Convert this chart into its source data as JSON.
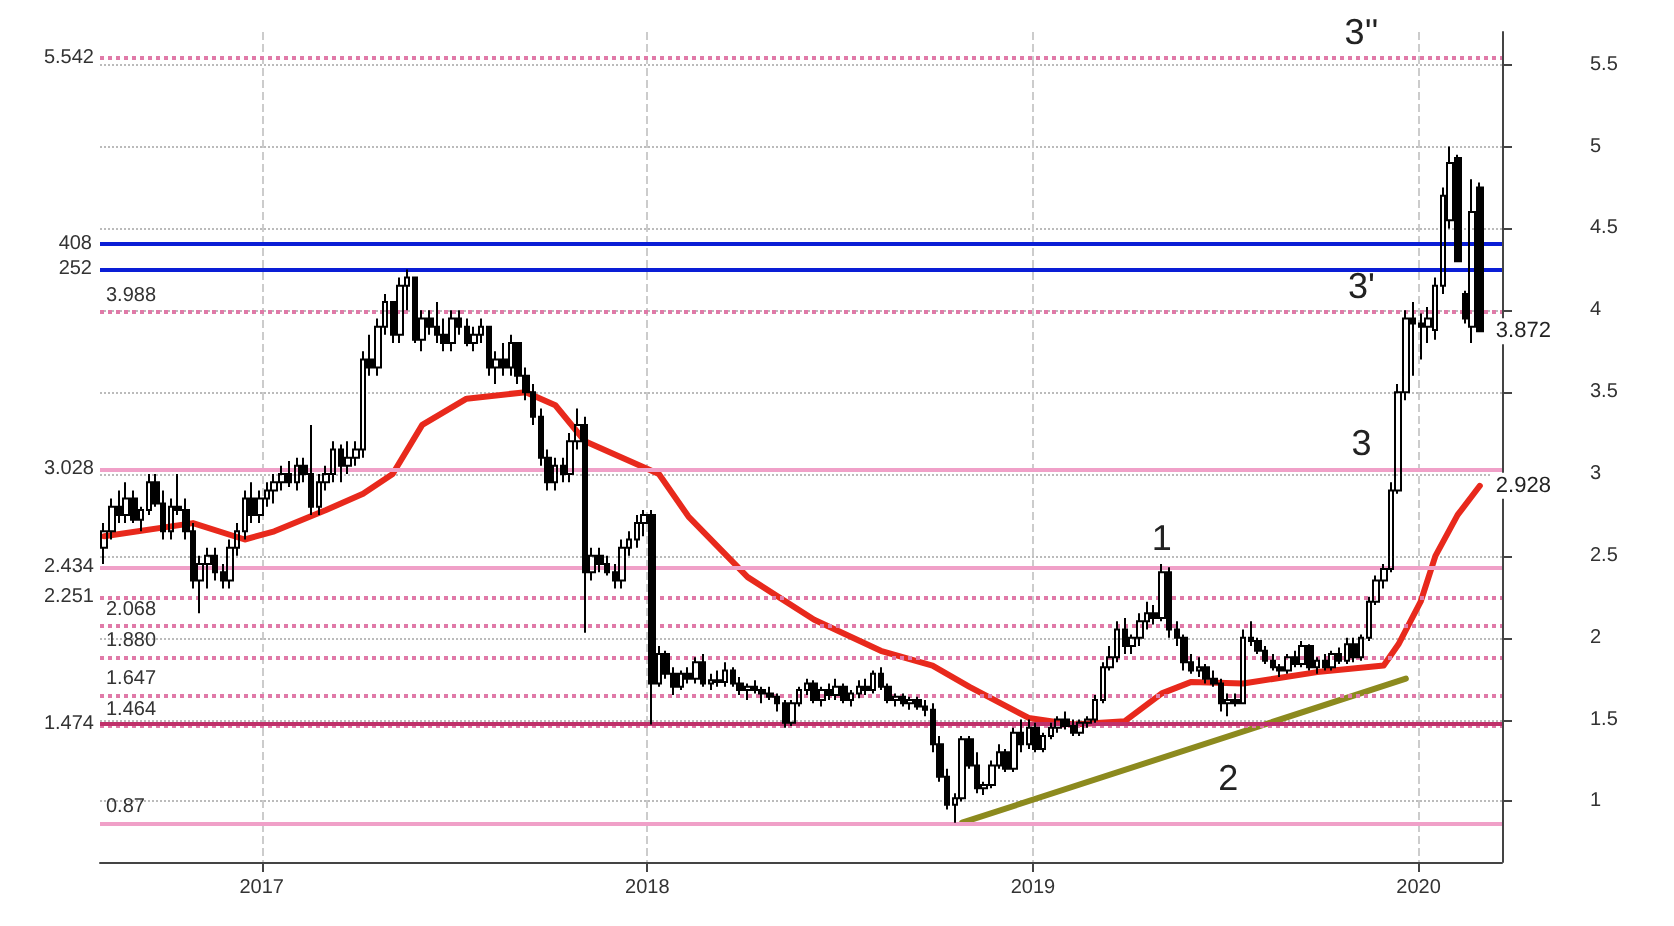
{
  "chart_data": {
    "type": "candlestick",
    "x": [
      "2016-08-05",
      "2016-08-12",
      "2016-08-19",
      "2016-08-26",
      "2016-09-02",
      "2016-09-09",
      "2016-09-16",
      "2016-09-23",
      "2016-09-30",
      "2016-10-07",
      "2016-10-14",
      "2016-10-21",
      "2016-10-28",
      "2016-11-04",
      "2016-11-11",
      "2016-11-18",
      "2016-11-25",
      "2016-12-02",
      "2016-12-09",
      "2016-12-16",
      "2016-12-23",
      "2016-12-30",
      "2017-01-06",
      "2017-01-13",
      "2017-01-20",
      "2017-01-27",
      "2017-02-03",
      "2017-02-10",
      "2017-02-17",
      "2017-02-24",
      "2017-03-03",
      "2017-03-10",
      "2017-03-17",
      "2017-03-24",
      "2017-03-31",
      "2017-04-07",
      "2017-04-14",
      "2017-04-21",
      "2017-04-28",
      "2017-05-05",
      "2017-05-12",
      "2017-05-19",
      "2017-05-26",
      "2017-06-02",
      "2017-06-09",
      "2017-06-16",
      "2017-06-23",
      "2017-06-30",
      "2017-07-07",
      "2017-07-14",
      "2017-07-21",
      "2017-07-28",
      "2017-08-04",
      "2017-08-11",
      "2017-08-18",
      "2017-08-25",
      "2017-09-01",
      "2017-09-08",
      "2017-09-15",
      "2017-09-22",
      "2017-09-29",
      "2017-10-06",
      "2017-10-13",
      "2017-10-20",
      "2017-10-27",
      "2017-11-03",
      "2017-11-10",
      "2017-11-17",
      "2017-11-24",
      "2017-12-01",
      "2017-12-08",
      "2017-12-15",
      "2017-12-22",
      "2017-12-29",
      "2018-01-05",
      "2018-01-12",
      "2018-01-19",
      "2018-01-26",
      "2018-02-02",
      "2018-02-09",
      "2018-02-16",
      "2018-02-23",
      "2018-03-02",
      "2018-03-09",
      "2018-03-16",
      "2018-03-23",
      "2018-03-30",
      "2018-04-06",
      "2018-04-13",
      "2018-04-20",
      "2018-04-27",
      "2018-05-04",
      "2018-05-11",
      "2018-05-18",
      "2018-05-25",
      "2018-06-01",
      "2018-06-08",
      "2018-06-15",
      "2018-06-22",
      "2018-06-29",
      "2018-07-06",
      "2018-07-13",
      "2018-07-20",
      "2018-07-27",
      "2018-08-03",
      "2018-08-10",
      "2018-08-17",
      "2018-08-24",
      "2018-08-31",
      "2018-09-07",
      "2018-09-14",
      "2018-09-21",
      "2018-09-28",
      "2018-10-05",
      "2018-10-12",
      "2018-10-19",
      "2018-10-26",
      "2018-11-02",
      "2018-11-09",
      "2018-11-16",
      "2018-11-23",
      "2018-11-30",
      "2018-12-07",
      "2018-12-14",
      "2018-12-21",
      "2018-12-28",
      "2019-01-04",
      "2019-01-11",
      "2019-01-18",
      "2019-01-25",
      "2019-02-01",
      "2019-02-08",
      "2019-02-15",
      "2019-02-22",
      "2019-03-01",
      "2019-03-08",
      "2019-03-15",
      "2019-03-22",
      "2019-03-29",
      "2019-04-05",
      "2019-04-12",
      "2019-04-19",
      "2019-04-26",
      "2019-05-03",
      "2019-05-10",
      "2019-05-17",
      "2019-05-24",
      "2019-05-31",
      "2019-06-07",
      "2019-06-14",
      "2019-06-21",
      "2019-06-28",
      "2019-07-05",
      "2019-07-12",
      "2019-07-19",
      "2019-07-26",
      "2019-08-02",
      "2019-08-09",
      "2019-08-16",
      "2019-08-23",
      "2019-08-30",
      "2019-09-06",
      "2019-09-13",
      "2019-09-20",
      "2019-09-27",
      "2019-10-04",
      "2019-10-11",
      "2019-10-18",
      "2019-10-25",
      "2019-11-01",
      "2019-11-08",
      "2019-11-15",
      "2019-11-22",
      "2019-11-29",
      "2019-12-06",
      "2019-12-13",
      "2019-12-20",
      "2019-12-27",
      "2020-01-03",
      "2020-01-10",
      "2020-01-17",
      "2020-01-24",
      "2020-01-31",
      "2020-02-07",
      "2020-02-14",
      "2020-02-21",
      "2020-02-28"
    ],
    "ohlc": [
      [
        2.55,
        2.7,
        2.45,
        2.65
      ],
      [
        2.65,
        2.85,
        2.6,
        2.8
      ],
      [
        2.8,
        2.9,
        2.7,
        2.75
      ],
      [
        2.75,
        2.95,
        2.7,
        2.85
      ],
      [
        2.85,
        2.9,
        2.7,
        2.72
      ],
      [
        2.72,
        2.8,
        2.65,
        2.78
      ],
      [
        2.78,
        3.0,
        2.75,
        2.95
      ],
      [
        2.95,
        3.0,
        2.8,
        2.82
      ],
      [
        2.82,
        2.9,
        2.6,
        2.65
      ],
      [
        2.65,
        2.85,
        2.6,
        2.8
      ],
      [
        2.8,
        3.0,
        2.75,
        2.78
      ],
      [
        2.78,
        2.85,
        2.6,
        2.65
      ],
      [
        2.65,
        2.7,
        2.3,
        2.35
      ],
      [
        2.35,
        2.5,
        2.15,
        2.45
      ],
      [
        2.45,
        2.55,
        2.3,
        2.5
      ],
      [
        2.5,
        2.55,
        2.35,
        2.4
      ],
      [
        2.4,
        2.45,
        2.3,
        2.35
      ],
      [
        2.35,
        2.6,
        2.3,
        2.55
      ],
      [
        2.55,
        2.7,
        2.5,
        2.65
      ],
      [
        2.65,
        2.9,
        2.6,
        2.85
      ],
      [
        2.85,
        2.95,
        2.7,
        2.75
      ],
      [
        2.75,
        2.9,
        2.7,
        2.85
      ],
      [
        2.85,
        2.95,
        2.8,
        2.9
      ],
      [
        2.9,
        3.0,
        2.82,
        2.95
      ],
      [
        2.95,
        3.05,
        2.9,
        3.0
      ],
      [
        3.0,
        3.08,
        2.92,
        2.95
      ],
      [
        2.95,
        3.1,
        2.9,
        3.05
      ],
      [
        3.05,
        3.1,
        2.95,
        3.0
      ],
      [
        3.0,
        3.3,
        2.75,
        2.8
      ],
      [
        2.8,
        3.0,
        2.75,
        2.95
      ],
      [
        2.95,
        3.05,
        2.9,
        3.0
      ],
      [
        3.0,
        3.2,
        2.95,
        3.15
      ],
      [
        3.15,
        3.18,
        2.95,
        3.05
      ],
      [
        3.05,
        3.2,
        3.0,
        3.1
      ],
      [
        3.1,
        3.2,
        3.05,
        3.15
      ],
      [
        3.15,
        3.75,
        3.1,
        3.7
      ],
      [
        3.7,
        3.85,
        3.6,
        3.65
      ],
      [
        3.65,
        3.95,
        3.6,
        3.9
      ],
      [
        3.9,
        4.1,
        3.85,
        4.05
      ],
      [
        4.05,
        4.05,
        3.8,
        3.85
      ],
      [
        3.85,
        4.2,
        3.8,
        4.15
      ],
      [
        4.15,
        4.25,
        4.0,
        4.2
      ],
      [
        4.2,
        4.2,
        3.8,
        3.82
      ],
      [
        3.82,
        4.0,
        3.75,
        3.95
      ],
      [
        3.95,
        4.0,
        3.85,
        3.9
      ],
      [
        3.9,
        4.05,
        3.8,
        3.85
      ],
      [
        3.85,
        3.95,
        3.75,
        3.8
      ],
      [
        3.8,
        4.0,
        3.75,
        3.95
      ],
      [
        3.95,
        4.0,
        3.85,
        3.9
      ],
      [
        3.9,
        3.95,
        3.78,
        3.8
      ],
      [
        3.8,
        3.9,
        3.75,
        3.85
      ],
      [
        3.85,
        3.95,
        3.8,
        3.9
      ],
      [
        3.9,
        3.9,
        3.6,
        3.65
      ],
      [
        3.65,
        3.75,
        3.55,
        3.7
      ],
      [
        3.7,
        3.8,
        3.6,
        3.65
      ],
      [
        3.65,
        3.85,
        3.6,
        3.8
      ],
      [
        3.8,
        3.8,
        3.55,
        3.6
      ],
      [
        3.6,
        3.65,
        3.45,
        3.5
      ],
      [
        3.5,
        3.55,
        3.3,
        3.35
      ],
      [
        3.35,
        3.4,
        3.05,
        3.1
      ],
      [
        3.1,
        3.15,
        2.9,
        2.95
      ],
      [
        2.95,
        3.1,
        2.9,
        3.05
      ],
      [
        3.05,
        3.1,
        2.95,
        3.0
      ],
      [
        3.0,
        3.25,
        2.95,
        3.2
      ],
      [
        3.2,
        3.4,
        3.15,
        3.3
      ],
      [
        3.3,
        3.35,
        2.03,
        2.4
      ],
      [
        2.4,
        2.55,
        2.35,
        2.5
      ],
      [
        2.5,
        2.55,
        2.4,
        2.45
      ],
      [
        2.45,
        2.5,
        2.38,
        2.4
      ],
      [
        2.4,
        2.45,
        2.3,
        2.35
      ],
      [
        2.35,
        2.6,
        2.3,
        2.55
      ],
      [
        2.55,
        2.65,
        2.5,
        2.6
      ],
      [
        2.6,
        2.75,
        2.55,
        2.7
      ],
      [
        2.7,
        2.78,
        2.62,
        2.75
      ],
      [
        2.75,
        2.78,
        1.47,
        1.72
      ],
      [
        1.72,
        1.95,
        1.7,
        1.9
      ],
      [
        1.9,
        1.92,
        1.75,
        1.78
      ],
      [
        1.78,
        1.82,
        1.65,
        1.7
      ],
      [
        1.7,
        1.8,
        1.68,
        1.78
      ],
      [
        1.78,
        1.82,
        1.72,
        1.75
      ],
      [
        1.75,
        1.88,
        1.72,
        1.85
      ],
      [
        1.85,
        1.9,
        1.7,
        1.72
      ],
      [
        1.72,
        1.78,
        1.68,
        1.74
      ],
      [
        1.74,
        1.8,
        1.7,
        1.73
      ],
      [
        1.73,
        1.85,
        1.7,
        1.8
      ],
      [
        1.8,
        1.82,
        1.7,
        1.72
      ],
      [
        1.72,
        1.76,
        1.65,
        1.68
      ],
      [
        1.68,
        1.72,
        1.62,
        1.7
      ],
      [
        1.7,
        1.74,
        1.66,
        1.68
      ],
      [
        1.68,
        1.7,
        1.6,
        1.66
      ],
      [
        1.66,
        1.7,
        1.62,
        1.64
      ],
      [
        1.64,
        1.66,
        1.55,
        1.6
      ],
      [
        1.6,
        1.62,
        1.45,
        1.48
      ],
      [
        1.48,
        1.62,
        1.46,
        1.6
      ],
      [
        1.6,
        1.7,
        1.58,
        1.68
      ],
      [
        1.68,
        1.75,
        1.65,
        1.72
      ],
      [
        1.72,
        1.74,
        1.6,
        1.62
      ],
      [
        1.62,
        1.7,
        1.58,
        1.68
      ],
      [
        1.68,
        1.72,
        1.62,
        1.65
      ],
      [
        1.65,
        1.75,
        1.62,
        1.7
      ],
      [
        1.7,
        1.72,
        1.6,
        1.62
      ],
      [
        1.62,
        1.68,
        1.58,
        1.66
      ],
      [
        1.66,
        1.74,
        1.63,
        1.7
      ],
      [
        1.7,
        1.75,
        1.65,
        1.68
      ],
      [
        1.68,
        1.8,
        1.66,
        1.78
      ],
      [
        1.78,
        1.82,
        1.68,
        1.7
      ],
      [
        1.7,
        1.72,
        1.6,
        1.62
      ],
      [
        1.62,
        1.66,
        1.58,
        1.64
      ],
      [
        1.64,
        1.66,
        1.58,
        1.6
      ],
      [
        1.6,
        1.64,
        1.56,
        1.62
      ],
      [
        1.62,
        1.64,
        1.56,
        1.58
      ],
      [
        1.58,
        1.62,
        1.52,
        1.56
      ],
      [
        1.56,
        1.6,
        1.3,
        1.35
      ],
      [
        1.35,
        1.4,
        1.12,
        1.15
      ],
      [
        1.15,
        1.2,
        0.95,
        0.98
      ],
      [
        0.98,
        1.05,
        0.87,
        1.02
      ],
      [
        1.02,
        1.4,
        1.0,
        1.38
      ],
      [
        1.38,
        1.4,
        1.2,
        1.22
      ],
      [
        1.22,
        1.3,
        1.05,
        1.08
      ],
      [
        1.08,
        1.12,
        1.04,
        1.1
      ],
      [
        1.1,
        1.25,
        1.08,
        1.22
      ],
      [
        1.22,
        1.35,
        1.2,
        1.3
      ],
      [
        1.3,
        1.32,
        1.18,
        1.2
      ],
      [
        1.2,
        1.45,
        1.18,
        1.42
      ],
      [
        1.42,
        1.5,
        1.3,
        1.35
      ],
      [
        1.35,
        1.5,
        1.32,
        1.45
      ],
      [
        1.45,
        1.48,
        1.3,
        1.32
      ],
      [
        1.32,
        1.42,
        1.3,
        1.4
      ],
      [
        1.4,
        1.48,
        1.38,
        1.45
      ],
      [
        1.45,
        1.52,
        1.42,
        1.5
      ],
      [
        1.5,
        1.55,
        1.44,
        1.46
      ],
      [
        1.46,
        1.5,
        1.4,
        1.42
      ],
      [
        1.42,
        1.5,
        1.4,
        1.48
      ],
      [
        1.48,
        1.52,
        1.45,
        1.5
      ],
      [
        1.5,
        1.65,
        1.48,
        1.62
      ],
      [
        1.62,
        1.85,
        1.6,
        1.82
      ],
      [
        1.82,
        1.95,
        1.8,
        1.88
      ],
      [
        1.88,
        2.1,
        1.85,
        2.05
      ],
      [
        2.05,
        2.12,
        1.9,
        1.95
      ],
      [
        1.95,
        2.02,
        1.9,
        2.0
      ],
      [
        2.0,
        2.15,
        1.95,
        2.1
      ],
      [
        2.1,
        2.22,
        2.05,
        2.15
      ],
      [
        2.15,
        2.2,
        2.08,
        2.12
      ],
      [
        2.12,
        2.45,
        2.1,
        2.4
      ],
      [
        2.4,
        2.43,
        2.0,
        2.05
      ],
      [
        2.05,
        2.1,
        1.95,
        2.0
      ],
      [
        2.0,
        2.02,
        1.8,
        1.85
      ],
      [
        1.85,
        1.9,
        1.78,
        1.8
      ],
      [
        1.8,
        1.88,
        1.76,
        1.82
      ],
      [
        1.82,
        1.84,
        1.72,
        1.75
      ],
      [
        1.75,
        1.8,
        1.7,
        1.72
      ],
      [
        1.72,
        1.75,
        1.55,
        1.6
      ],
      [
        1.6,
        1.66,
        1.52,
        1.62
      ],
      [
        1.62,
        1.66,
        1.58,
        1.6
      ],
      [
        1.6,
        2.05,
        1.6,
        2.0
      ],
      [
        2.0,
        2.1,
        1.95,
        1.98
      ],
      [
        1.98,
        2.0,
        1.9,
        1.92
      ],
      [
        1.92,
        1.95,
        1.84,
        1.86
      ],
      [
        1.86,
        1.9,
        1.8,
        1.82
      ],
      [
        1.82,
        1.84,
        1.76,
        1.8
      ],
      [
        1.8,
        1.9,
        1.78,
        1.88
      ],
      [
        1.88,
        1.92,
        1.82,
        1.84
      ],
      [
        1.84,
        1.98,
        1.82,
        1.95
      ],
      [
        1.95,
        1.96,
        1.8,
        1.82
      ],
      [
        1.82,
        1.88,
        1.78,
        1.86
      ],
      [
        1.86,
        1.9,
        1.8,
        1.82
      ],
      [
        1.82,
        1.92,
        1.8,
        1.9
      ],
      [
        1.9,
        1.94,
        1.84,
        1.86
      ],
      [
        1.86,
        2.0,
        1.84,
        1.96
      ],
      [
        1.96,
        2.0,
        1.85,
        1.88
      ],
      [
        1.88,
        2.02,
        1.86,
        2.0
      ],
      [
        2.0,
        2.25,
        1.98,
        2.22
      ],
      [
        2.22,
        2.38,
        2.2,
        2.35
      ],
      [
        2.35,
        2.45,
        2.3,
        2.42
      ],
      [
        2.42,
        2.95,
        2.4,
        2.9
      ],
      [
        2.9,
        3.55,
        2.88,
        3.5
      ],
      [
        3.5,
        4.0,
        3.45,
        3.95
      ],
      [
        3.95,
        4.05,
        3.6,
        3.92
      ],
      [
        3.92,
        3.98,
        3.7,
        3.9
      ],
      [
        3.9,
        4.02,
        3.8,
        3.95
      ],
      [
        3.88,
        4.2,
        3.82,
        4.15
      ],
      [
        4.15,
        4.75,
        4.1,
        4.7
      ],
      [
        4.55,
        5.0,
        4.5,
        4.9
      ],
      [
        4.93,
        4.95,
        4.3,
        4.3
      ],
      [
        4.1,
        4.12,
        3.92,
        3.95
      ],
      [
        3.9,
        4.8,
        3.8,
        4.6
      ],
      [
        4.75,
        4.78,
        3.87,
        3.872
      ]
    ],
    "color": "#000000",
    "series": [
      {
        "type": "line",
        "color": "#e8291c",
        "x": [
          "2016-08-05",
          "2016-10-28",
          "2016-12-16",
          "2017-01-13",
          "2017-03-03",
          "2017-04-07",
          "2017-05-05",
          "2017-06-02",
          "2017-07-14",
          "2017-09-08",
          "2017-10-06",
          "2017-11-03",
          "2018-01-12",
          "2018-02-09",
          "2018-04-06",
          "2018-06-08",
          "2018-08-10",
          "2018-09-28",
          "2018-11-02",
          "2018-12-28",
          "2019-02-08",
          "2019-03-29",
          "2019-05-03",
          "2019-05-31",
          "2019-07-19",
          "2019-09-27",
          "2019-11-29",
          "2019-12-13",
          "2020-01-03",
          "2020-01-17",
          "2020-02-07",
          "2020-02-28"
        ],
        "values": [
          2.62,
          2.7,
          2.6,
          2.65,
          2.78,
          2.88,
          3.0,
          3.3,
          3.46,
          3.5,
          3.42,
          3.2,
          3.0,
          2.74,
          2.37,
          2.11,
          1.92,
          1.83,
          1.7,
          1.51,
          1.47,
          1.49,
          1.66,
          1.73,
          1.72,
          1.79,
          1.83,
          1.96,
          2.22,
          2.5,
          2.75,
          2.928
        ]
      },
      {
        "type": "line",
        "color": "#8c8a1e",
        "x": [
          "2018-10-26",
          "2019-12-20"
        ],
        "values": [
          0.87,
          1.75
        ]
      }
    ],
    "ref_lines": [
      {
        "axis": "y",
        "value": 3.988,
        "label": "3.988",
        "color": "#e07aa8",
        "line_style": "dotted"
      },
      {
        "axis": "y",
        "value": 5.542,
        "label": "5.542",
        "color": "#e07aa8",
        "line_style": "dotted"
      },
      {
        "axis": "y",
        "value": 4.252,
        "color": "#0a1ed6",
        "line_style": "solid"
      },
      {
        "axis": "y",
        "value": 4.408,
        "color": "#0a1ed6",
        "line_style": "solid"
      },
      {
        "axis": "y",
        "value": 2.068,
        "label": "2.068",
        "color": "#e07aa8",
        "line_style": "dotted"
      },
      {
        "axis": "y",
        "value": 3.028,
        "label": "3.028",
        "color": "#f0a0c8",
        "line_style": "solid"
      },
      {
        "axis": "y",
        "value": 1.88,
        "label": "1.880",
        "color": "#e07aa8",
        "line_style": "dotted"
      },
      {
        "axis": "y",
        "value": 2.434,
        "label": "2.434",
        "color": "#f0a0c8",
        "line_style": "solid"
      },
      {
        "axis": "y",
        "value": 1.647,
        "label": "1.647",
        "color": "#e07aa8",
        "line_style": "dotted"
      },
      {
        "axis": "y",
        "value": 2.251,
        "label": "2.251",
        "color": "#e07aa8",
        "line_style": "dotted"
      },
      {
        "axis": "y",
        "value": 1.464,
        "label": "1.464",
        "color": "#e07aa8",
        "line_style": "dotted"
      },
      {
        "axis": "y",
        "value": 1.474,
        "label": "1.474",
        "color": "#c0306a",
        "line_style": "solid"
      },
      {
        "axis": "y",
        "value": 0.87,
        "label": "0.87",
        "color": "#f0a0c8",
        "line_style": "solid"
      }
    ],
    "annotations": [
      {
        "text": "1",
        "x": "2019-05-03",
        "y": 2.45
      },
      {
        "text": "2",
        "x": "2019-07-05",
        "y": 1.52
      },
      {
        "text": "3",
        "x": "2019-11-08",
        "y": 3.028
      },
      {
        "text": "3'",
        "x": "2019-11-08",
        "y": 3.988
      },
      {
        "text": "3''",
        "x": "2019-11-08",
        "y": 5.542
      },
      {
        "text": "3.872",
        "x": "2020-02-28",
        "y": 3.872
      },
      {
        "text": "2.928",
        "x": "2020-02-28",
        "y": 2.928
      },
      {
        "text": "408",
        "x": "2016-08-01",
        "y": 4.408
      },
      {
        "text": "252",
        "x": "2016-08-01",
        "y": 4.252
      }
    ],
    "xlim": [
      "2016-08-01",
      "2020-03-20"
    ],
    "xticks": [
      {
        "value": "2017-01-01",
        "label": "2017"
      },
      {
        "value": "2018-01-01",
        "label": "2018"
      },
      {
        "value": "2019-01-01",
        "label": "2019"
      },
      {
        "value": "2020-01-01",
        "label": "2020"
      }
    ],
    "ylim": [
      0.63,
      5.7
    ],
    "yticks": [
      1,
      1.5,
      2,
      2.5,
      3,
      3.5,
      4,
      4.5,
      5,
      5.5
    ],
    "grid": true,
    "marker": "none",
    "line_style": "solid"
  }
}
